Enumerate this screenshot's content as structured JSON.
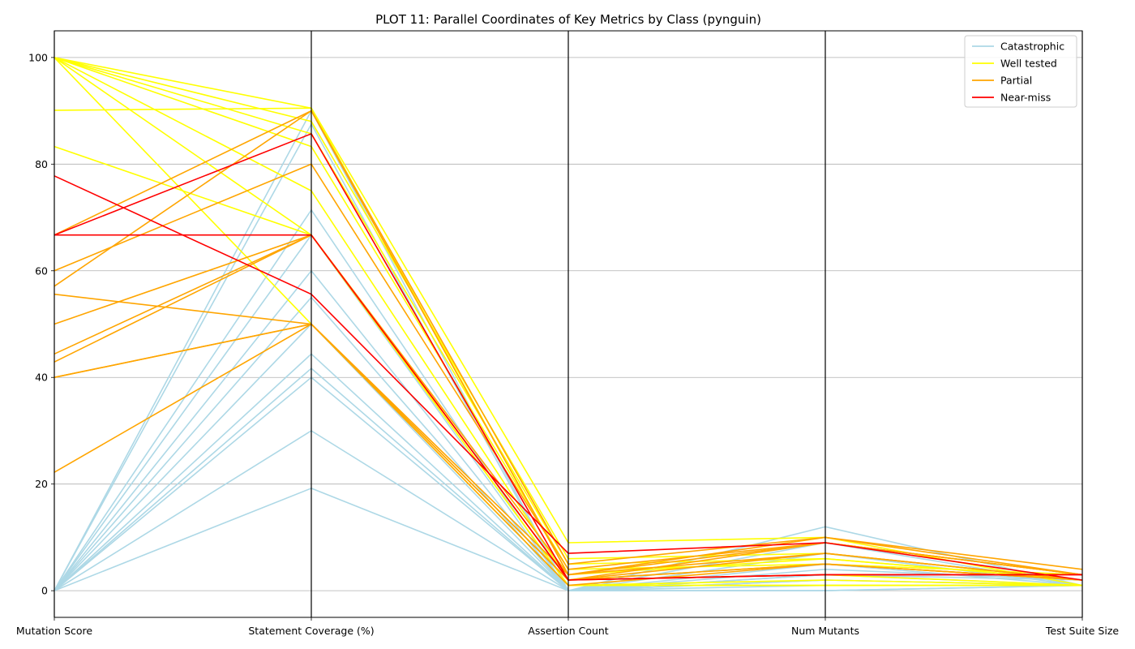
{
  "chart_data": {
    "type": "line",
    "subtype": "parallel-coordinates",
    "title": "PLOT 11: Parallel Coordinates of Key Metrics by Class (pynguin)",
    "dimensions": [
      "Mutation Score",
      "Statement Coverage (%)",
      "Assertion Count",
      "Num Mutants",
      "Test Suite Size"
    ],
    "ylim": [
      -5,
      105
    ],
    "yticks": [
      0,
      20,
      40,
      60,
      80,
      100
    ],
    "grid": true,
    "legend_position": "top-right",
    "classes": [
      {
        "name": "Catastrophic",
        "color": "#add8e6"
      },
      {
        "name": "Well tested",
        "color": "#ffff00"
      },
      {
        "name": "Partial",
        "color": "#ffa500"
      },
      {
        "name": "Near-miss",
        "color": "#ff0000"
      }
    ],
    "series": [
      {
        "class": "Catastrophic",
        "values": [
          0,
          90,
          0,
          12,
          1
        ]
      },
      {
        "class": "Catastrophic",
        "values": [
          0,
          87.5,
          0,
          9,
          1
        ]
      },
      {
        "class": "Catastrophic",
        "values": [
          0,
          71.4,
          0,
          7,
          1
        ]
      },
      {
        "class": "Catastrophic",
        "values": [
          0,
          66.7,
          0,
          3,
          1
        ]
      },
      {
        "class": "Catastrophic",
        "values": [
          0,
          60,
          0,
          2,
          1
        ]
      },
      {
        "class": "Catastrophic",
        "values": [
          0,
          55,
          0,
          5,
          1
        ]
      },
      {
        "class": "Catastrophic",
        "values": [
          0,
          50,
          0,
          3,
          2
        ]
      },
      {
        "class": "Catastrophic",
        "values": [
          0,
          44.4,
          0,
          2,
          1
        ]
      },
      {
        "class": "Catastrophic",
        "values": [
          0,
          41.7,
          0,
          4,
          2
        ]
      },
      {
        "class": "Catastrophic",
        "values": [
          0,
          40,
          0,
          1,
          1
        ]
      },
      {
        "class": "Catastrophic",
        "values": [
          0,
          30,
          0,
          0,
          1
        ]
      },
      {
        "class": "Catastrophic",
        "values": [
          0,
          19.2,
          0,
          0,
          1
        ]
      },
      {
        "class": "Well tested",
        "values": [
          100,
          90.5,
          9,
          10,
          1
        ]
      },
      {
        "class": "Well tested",
        "values": [
          100,
          88,
          6,
          7,
          2
        ]
      },
      {
        "class": "Well tested",
        "values": [
          100,
          85.7,
          5,
          6,
          2
        ]
      },
      {
        "class": "Well tested",
        "values": [
          100,
          83.3,
          4,
          5,
          3
        ]
      },
      {
        "class": "Well tested",
        "values": [
          100,
          75,
          2,
          3,
          1
        ]
      },
      {
        "class": "Well tested",
        "values": [
          100,
          66.7,
          1,
          1,
          1
        ]
      },
      {
        "class": "Well tested",
        "values": [
          100,
          50,
          1,
          2,
          1
        ]
      },
      {
        "class": "Well tested",
        "values": [
          90.1,
          90.5,
          3,
          6,
          2
        ]
      },
      {
        "class": "Well tested",
        "values": [
          83.3,
          66.7,
          1,
          1,
          1
        ]
      },
      {
        "class": "Partial",
        "values": [
          66.7,
          90,
          5,
          10,
          4
        ]
      },
      {
        "class": "Partial",
        "values": [
          60,
          80,
          4,
          9,
          3
        ]
      },
      {
        "class": "Partial",
        "values": [
          57.1,
          90,
          3,
          10,
          3
        ]
      },
      {
        "class": "Partial",
        "values": [
          55.6,
          50,
          3,
          7,
          2
        ]
      },
      {
        "class": "Partial",
        "values": [
          50,
          66.7,
          2,
          5,
          2
        ]
      },
      {
        "class": "Partial",
        "values": [
          44.4,
          66.7,
          3,
          9,
          3
        ]
      },
      {
        "class": "Partial",
        "values": [
          42.9,
          66.7,
          2,
          7,
          2
        ]
      },
      {
        "class": "Partial",
        "values": [
          40,
          50,
          2,
          5,
          2
        ]
      },
      {
        "class": "Partial",
        "values": [
          40,
          50,
          1,
          5,
          2
        ]
      },
      {
        "class": "Partial",
        "values": [
          22.2,
          50,
          2,
          9,
          3
        ]
      },
      {
        "class": "Near-miss",
        "values": [
          77.8,
          55.6,
          7,
          9,
          2
        ]
      },
      {
        "class": "Near-miss",
        "values": [
          66.7,
          85.7,
          2,
          3,
          3
        ]
      },
      {
        "class": "Near-miss",
        "values": [
          66.7,
          66.7,
          2,
          3,
          3
        ]
      }
    ]
  }
}
